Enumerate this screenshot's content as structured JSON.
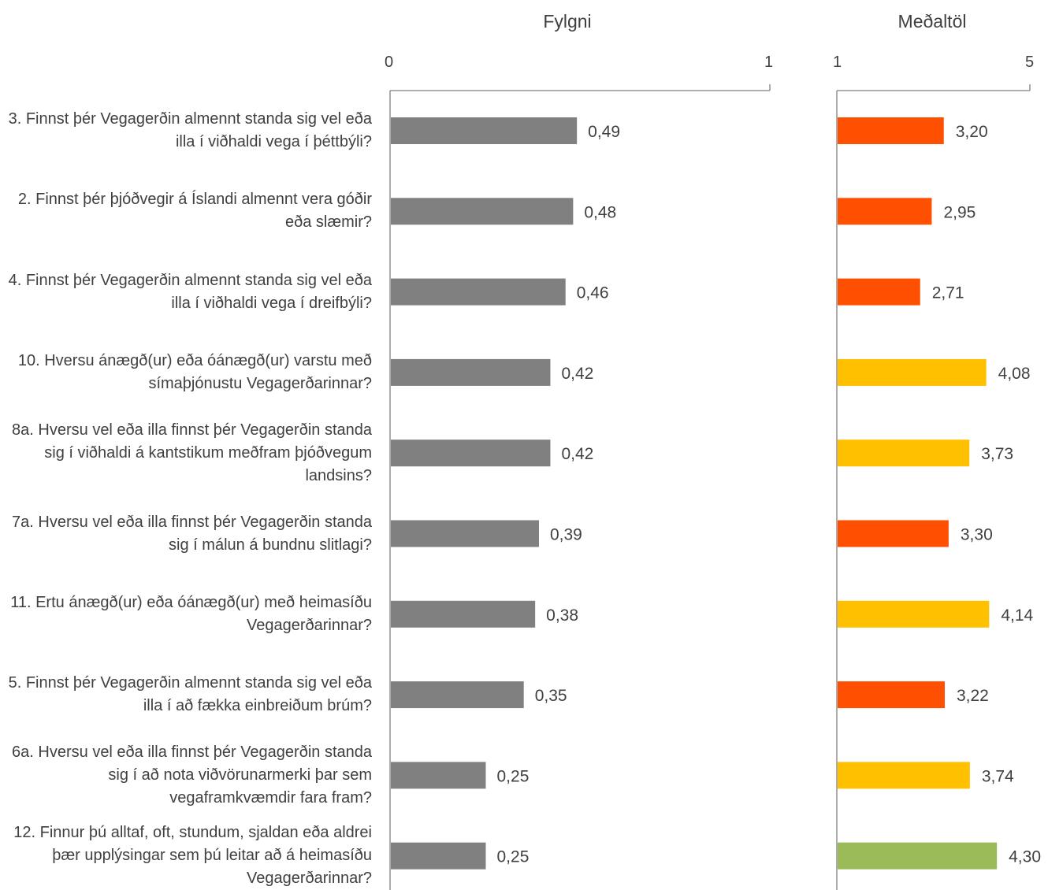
{
  "chart_data": [
    {
      "type": "bar",
      "orientation": "horizontal",
      "title": "Fylgni",
      "categories": [
        "3. Finnst þér Vegagerðin almennt standa sig vel eða illa í viðhaldi vega í þéttbýli?",
        "2. Finnst þér þjóðvegir á Íslandi almennt vera góðir eða slæmir?",
        "4. Finnst þér Vegagerðin almennt standa sig vel eða illa í viðhaldi vega í dreifbýli?",
        "10. Hversu ánægð(ur) eða óánægð(ur) varstu með símaþjónustu Vegagerðarinnar?",
        "8a. Hversu vel eða illa finnst þér Vegagerðin standa sig í viðhaldi á kantstikum meðfram þjóðvegum landsins?",
        "7a. Hversu vel eða illa finnst þér Vegagerðin standa sig í málun á bundnu slitlagi?",
        "11. Ertu ánægð(ur) eða óánægð(ur) með heimasíðu Vegagerðarinnar?",
        "5. Finnst þér Vegagerðin almennt standa sig vel eða illa í að fækka einbreiðum brúm?",
        "6a. Hversu vel eða illa finnst þér Vegagerðin standa sig í að nota viðvörunarmerki þar sem vegaframkvæmdir fara fram?",
        "12. Finnur þú alltaf, oft, stundum, sjaldan eða aldrei þær upplýsingar sem þú leitar að á heimasíðu Vegagerðarinnar?"
      ],
      "values": [
        0.49,
        0.48,
        0.46,
        0.42,
        0.42,
        0.39,
        0.38,
        0.35,
        0.25,
        0.25
      ],
      "value_labels": [
        "0,49",
        "0,48",
        "0,46",
        "0,42",
        "0,42",
        "0,39",
        "0,38",
        "0,35",
        "0,25",
        "0,25"
      ],
      "xlim": [
        0,
        1
      ],
      "tick_labels": [
        "0",
        "1"
      ],
      "bar_color": "#808080",
      "grid": false
    },
    {
      "type": "bar",
      "orientation": "horizontal",
      "title": "Meðaltöl",
      "values": [
        3.2,
        2.95,
        2.71,
        4.08,
        3.73,
        3.3,
        4.14,
        3.22,
        3.74,
        4.3
      ],
      "value_labels": [
        "3,20",
        "2,95",
        "2,71",
        "4,08",
        "3,73",
        "3,30",
        "4,14",
        "3,22",
        "3,74",
        "4,30"
      ],
      "xlim": [
        1,
        5
      ],
      "tick_labels": [
        "1",
        "5"
      ],
      "bar_colors": [
        "#ff4f00",
        "#ff4f00",
        "#ff4f00",
        "#ffc000",
        "#ffc000",
        "#ff4f00",
        "#ffc000",
        "#ff4f00",
        "#ffc000",
        "#9bbb59"
      ],
      "grid": false
    }
  ]
}
